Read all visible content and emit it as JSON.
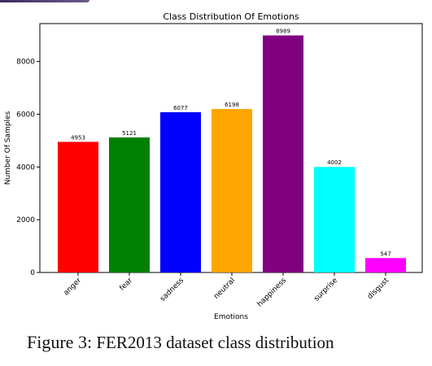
{
  "decor": {
    "corner_color": "#4b3870"
  },
  "caption": {
    "label": "Figure 3:",
    "text": "FER2013 dataset class distribution"
  },
  "chart_data": {
    "type": "bar",
    "title": "Class Distribution Of Emotions",
    "xlabel": "Emotions",
    "ylabel": "Number Of Samples",
    "categories": [
      "anger",
      "fear",
      "sadness",
      "neutral",
      "happiness",
      "surprise",
      "disgust"
    ],
    "values": [
      4953,
      5121,
      6077,
      6198,
      8989,
      4002,
      547
    ],
    "colors": [
      "#ff0000",
      "#008000",
      "#0000ff",
      "#ffa500",
      "#800080",
      "#00ffff",
      "#ff00ff"
    ],
    "yticks": [
      0,
      2000,
      4000,
      6000,
      8000
    ],
    "ylim": [
      0,
      9438
    ],
    "grid": false,
    "legend": "none"
  }
}
